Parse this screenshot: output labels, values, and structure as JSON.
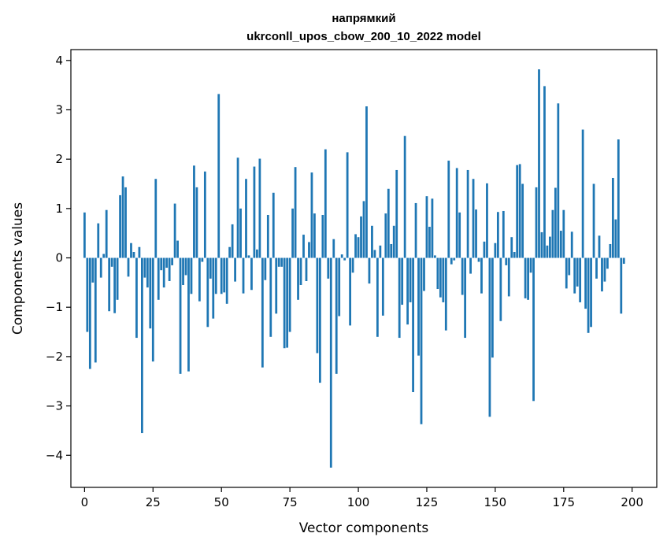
{
  "chart_data": {
    "type": "bar",
    "title": "напрямкий",
    "subtitle": "ukrconll_upos_cbow_200_10_2022 model",
    "xlabel": "Vector components",
    "ylabel": "Components values",
    "xlim": [
      -5,
      209
    ],
    "ylim": [
      -4.65,
      4.22
    ],
    "xticks": [
      0,
      25,
      50,
      75,
      100,
      125,
      150,
      175,
      200
    ],
    "yticks": [
      -4,
      -3,
      -2,
      -1,
      0,
      1,
      2,
      3,
      4
    ],
    "xtick_labels": [
      "0",
      "25",
      "50",
      "75",
      "100",
      "125",
      "150",
      "175",
      "200"
    ],
    "ytick_labels": [
      "−4",
      "−3",
      "−2",
      "−1",
      "0",
      "1",
      "2",
      "3",
      "4"
    ],
    "grid": false,
    "color": "#1f77b4",
    "values": [
      0.92,
      -1.5,
      -2.25,
      -0.5,
      -2.12,
      0.7,
      -0.4,
      0.08,
      0.97,
      -1.08,
      -0.18,
      -1.12,
      -0.85,
      1.27,
      1.65,
      1.43,
      -0.38,
      0.3,
      0.12,
      -1.62,
      0.22,
      -3.55,
      -0.4,
      -0.6,
      -1.43,
      -2.1,
      1.6,
      -0.85,
      -0.25,
      -0.6,
      -0.2,
      -0.47,
      -0.15,
      1.1,
      0.35,
      -2.35,
      -0.55,
      -0.35,
      -2.3,
      -0.73,
      1.87,
      1.43,
      -0.88,
      -0.08,
      1.75,
      -1.4,
      -0.42,
      -1.23,
      -0.73,
      3.32,
      -0.73,
      -0.7,
      -0.93,
      0.22,
      0.68,
      -0.48,
      2.03,
      1.0,
      -0.72,
      1.6,
      0.05,
      -0.65,
      1.85,
      0.17,
      2.01,
      -2.22,
      -0.45,
      0.87,
      -1.6,
      1.32,
      -1.13,
      -0.18,
      -0.18,
      -1.83,
      -1.82,
      -1.5,
      1.0,
      1.84,
      -0.85,
      -0.55,
      0.47,
      -0.47,
      0.32,
      1.73,
      0.9,
      -1.93,
      -2.53,
      0.87,
      2.2,
      -0.42,
      -4.25,
      0.38,
      -2.35,
      -1.18,
      0.07,
      -0.05,
      2.14,
      -1.37,
      -0.3,
      0.48,
      0.42,
      0.84,
      1.15,
      3.07,
      -0.52,
      0.65,
      0.16,
      -1.6,
      0.25,
      -1.17,
      0.9,
      1.4,
      0.28,
      0.65,
      1.78,
      -1.62,
      -0.95,
      2.47,
      -1.35,
      -0.9,
      -2.72,
      1.11,
      -1.98,
      -3.37,
      -0.67,
      1.25,
      0.63,
      1.2,
      0.05,
      -0.63,
      -0.8,
      -0.9,
      -1.47,
      1.97,
      -0.13,
      -0.05,
      1.82,
      0.92,
      -0.75,
      -1.62,
      1.78,
      -0.32,
      1.6,
      0.98,
      -0.08,
      -0.72,
      0.33,
      1.51,
      -3.22,
      -2.02,
      0.3,
      0.93,
      -1.28,
      0.95,
      -0.15,
      -0.78,
      0.42,
      0.12,
      1.88,
      1.9,
      1.5,
      -0.82,
      -0.85,
      -0.3,
      -2.9,
      1.43,
      3.82,
      0.52,
      3.48,
      0.25,
      0.43,
      0.97,
      1.42,
      3.13,
      0.55,
      0.97,
      -0.62,
      -0.35,
      0.53,
      -0.72,
      -0.58,
      -0.9,
      2.6,
      -1.03,
      -1.52,
      -1.4,
      1.5,
      -0.42,
      0.45,
      -0.68,
      -0.48,
      -0.22,
      0.28,
      1.62,
      0.78,
      2.4,
      -1.13,
      -0.12
    ]
  }
}
